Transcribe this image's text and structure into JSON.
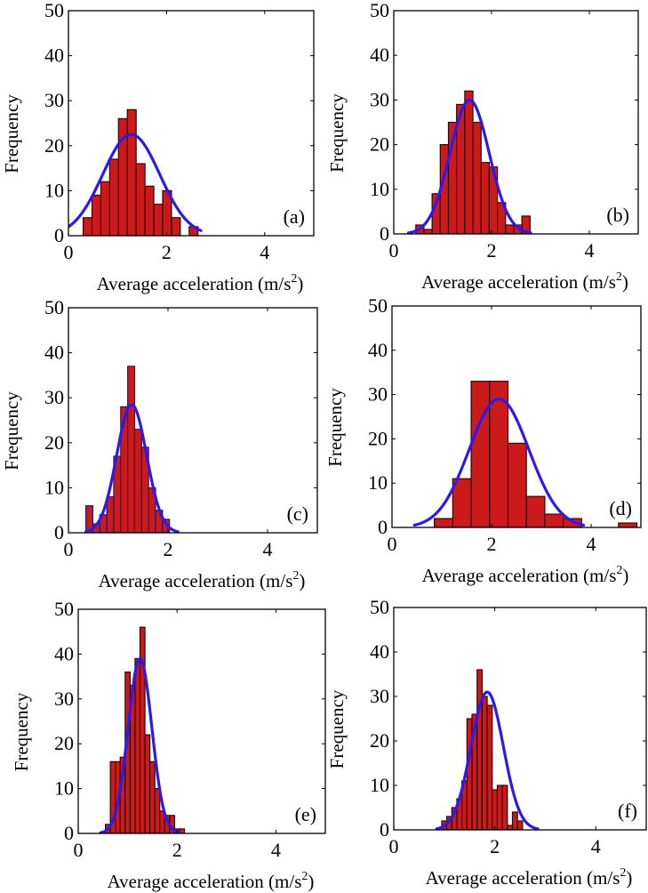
{
  "figure": {
    "bar_fill": "#cc1a1a",
    "bar_edge": "#2a0a0a",
    "bar_edge_c": "#1f1f66",
    "curve_color": "#2a1aee"
  },
  "chart_data": [
    {
      "type": "bar",
      "panel_label": "(a)",
      "xlabel": "Average acceleration (m/s",
      "xlabel_sup": "2",
      "xlabel_close": ")",
      "ylabel": "Frequency",
      "xlim": [
        0,
        5
      ],
      "ylim": [
        0,
        50
      ],
      "xticks": [
        0,
        2,
        4
      ],
      "xtick_labels": [
        "0",
        "2",
        "4"
      ],
      "yticks": [
        0,
        10,
        20,
        30,
        40,
        50
      ],
      "ytick_labels": [
        "0",
        "10",
        "20",
        "30",
        "40",
        "50"
      ],
      "bin_start": 0.3,
      "bin_width": 0.18,
      "values": [
        4,
        9,
        12,
        17,
        26,
        28,
        16,
        11,
        7,
        10,
        4,
        0,
        2
      ],
      "fit": {
        "type": "normal",
        "mean": 1.28,
        "peak": 22.5,
        "sd": 0.58,
        "x_from": 0.0,
        "x_to": 2.7
      }
    },
    {
      "type": "bar",
      "panel_label": "(b)",
      "xlabel": "Average acceleration (m/s",
      "xlabel_sup": "2",
      "xlabel_close": ")",
      "ylabel": "Frequency",
      "xlim": [
        0,
        5
      ],
      "ylim": [
        0,
        50
      ],
      "xticks": [
        0,
        2,
        4
      ],
      "xtick_labels": [
        "0",
        "2",
        "4"
      ],
      "yticks": [
        0,
        10,
        20,
        30,
        40,
        50
      ],
      "ytick_labels": [
        "0",
        "10",
        "20",
        "30",
        "40",
        "50"
      ],
      "bin_start": 0.45,
      "bin_width": 0.167,
      "values": [
        2,
        1,
        9,
        20,
        25,
        29,
        32,
        25,
        16,
        15,
        7,
        2,
        2,
        4
      ],
      "fit": {
        "type": "normal",
        "mean": 1.55,
        "peak": 30,
        "sd": 0.4,
        "x_from": 0.3,
        "x_to": 2.8
      }
    },
    {
      "type": "bar",
      "panel_label": "(c)",
      "xlabel": "Average acceleration (m/s",
      "xlabel_sup": "2",
      "xlabel_close": ")",
      "ylabel": "Frequency",
      "xlim": [
        0,
        5
      ],
      "ylim": [
        0,
        50
      ],
      "xticks": [
        0,
        2,
        4
      ],
      "xtick_labels": [
        "0",
        "2",
        "4"
      ],
      "yticks": [
        0,
        10,
        20,
        30,
        40,
        50
      ],
      "ytick_labels": [
        "0",
        "10",
        "20",
        "30",
        "40",
        "50"
      ],
      "bin_start": 0.35,
      "bin_width": 0.14,
      "values": [
        6,
        2,
        4,
        8,
        17,
        28,
        37,
        23,
        19,
        10,
        5,
        3
      ],
      "fit": {
        "type": "normal",
        "mean": 1.27,
        "peak": 28.5,
        "sd": 0.3,
        "x_from": 0.35,
        "x_to": 2.2
      }
    },
    {
      "type": "bar",
      "panel_label": "(d)",
      "xlabel": "Average acceleration (m/s",
      "xlabel_sup": "2",
      "xlabel_close": ")",
      "ylabel": "Frequency",
      "xlim": [
        0,
        5
      ],
      "ylim": [
        0,
        50
      ],
      "xticks": [
        0,
        2,
        4
      ],
      "xtick_labels": [
        "0",
        "2",
        "4"
      ],
      "yticks": [
        0,
        10,
        20,
        30,
        40,
        50
      ],
      "ytick_labels": [
        "0",
        "10",
        "20",
        "30",
        "40",
        "50"
      ],
      "bin_start": 0.85,
      "bin_width": 0.37,
      "values": [
        2,
        11,
        33,
        33,
        19,
        7,
        3,
        2,
        0,
        0,
        1
      ],
      "fit": {
        "type": "normal",
        "mean": 2.15,
        "peak": 29,
        "sd": 0.6,
        "x_from": 0.45,
        "x_to": 3.85
      }
    },
    {
      "type": "bar",
      "panel_label": "(e)",
      "xlabel": "Average acceleration (m/s",
      "xlabel_sup": "2",
      "xlabel_close": ")",
      "ylabel": "Frequency",
      "xlim": [
        0,
        5
      ],
      "ylim": [
        0,
        50
      ],
      "xticks": [
        0,
        2,
        4
      ],
      "xtick_labels": [
        "0",
        "2",
        "4"
      ],
      "yticks": [
        0,
        10,
        20,
        30,
        40,
        50
      ],
      "ytick_labels": [
        "0",
        "10",
        "20",
        "30",
        "40",
        "50"
      ],
      "bin_start": 0.55,
      "bin_width": 0.1,
      "values": [
        2,
        16,
        16,
        17,
        36,
        33,
        39,
        46,
        22,
        16,
        10,
        5,
        4,
        4,
        1,
        1
      ],
      "fit": {
        "type": "normal",
        "mean": 1.25,
        "peak": 39,
        "sd": 0.24,
        "x_from": 0.45,
        "x_to": 2.05
      }
    },
    {
      "type": "bar",
      "panel_label": "(f)",
      "xlabel": "Average acceleration (m/s",
      "xlabel_sup": "2",
      "xlabel_close": ")",
      "ylabel": "Frequency",
      "xlim": [
        0,
        5
      ],
      "ylim": [
        0,
        50
      ],
      "xticks": [
        0,
        2,
        4
      ],
      "xtick_labels": [
        "0",
        "2",
        "4"
      ],
      "yticks": [
        0,
        10,
        20,
        30,
        40,
        50
      ],
      "ytick_labels": [
        "0",
        "10",
        "20",
        "30",
        "40",
        "50"
      ],
      "bin_start": 0.95,
      "bin_width": 0.1,
      "values": [
        2,
        3,
        5,
        7,
        11,
        25,
        26,
        36,
        30,
        28,
        9,
        10,
        10,
        1,
        4,
        2
      ],
      "fit": {
        "type": "normal",
        "mean": 1.85,
        "peak": 31,
        "sd": 0.32,
        "x_from": 0.85,
        "x_to": 2.85
      }
    }
  ]
}
